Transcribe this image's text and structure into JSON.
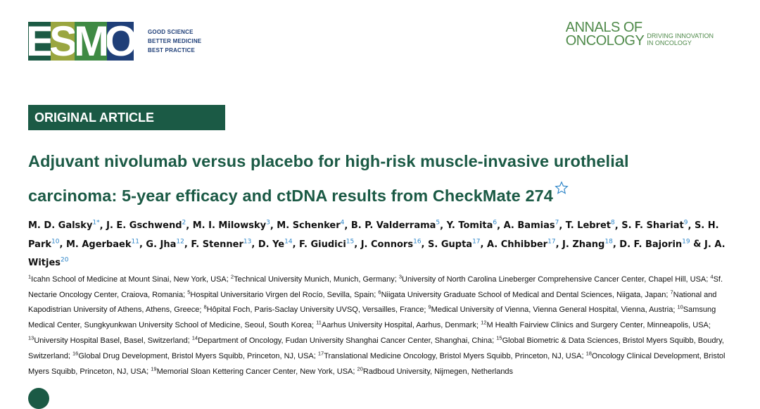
{
  "header": {
    "esmo_letters": [
      "E",
      "S",
      "M",
      "O"
    ],
    "esmo_tagline": [
      "GOOD SCIENCE",
      "BETTER MEDICINE",
      "BEST PRACTICE"
    ],
    "journal_title": [
      "ANNALS OF",
      "ONCOLOGY"
    ],
    "journal_tagline": [
      "DRIVING INNOVATION",
      "IN ONCOLOGY"
    ],
    "colors": {
      "esmo_e": "#1c5a44",
      "esmo_s": "#9aa640",
      "esmo_m": "#3f8a44",
      "esmo_o": "#1f3f78",
      "journal": "#4f8a4a"
    }
  },
  "article_type": "ORIGINAL ARTICLE",
  "title_line1": "Adjuvant nivolumab versus placebo for high-risk muscle-invasive urothelial",
  "title_line2": "carcinoma: 5-year efficacy and ctDNA results from CheckMate 274",
  "title_icon": "star-outline-icon",
  "authors": [
    {
      "name": "M. D. Galsky",
      "sup": "1*"
    },
    {
      "name": "J. E. Gschwend",
      "sup": "2"
    },
    {
      "name": "M. I. Milowsky",
      "sup": "3"
    },
    {
      "name": "M. Schenker",
      "sup": "4"
    },
    {
      "name": "B. P. Valderrama",
      "sup": "5"
    },
    {
      "name": "Y. Tomita",
      "sup": "6"
    },
    {
      "name": "A. Bamias",
      "sup": "7"
    },
    {
      "name": "T. Lebret",
      "sup": "8"
    },
    {
      "name": "S. F. Shariat",
      "sup": "9"
    },
    {
      "name": "S. H. Park",
      "sup": "10"
    },
    {
      "name": "M. Agerbaek",
      "sup": "11"
    },
    {
      "name": "G. Jha",
      "sup": "12"
    },
    {
      "name": "F. Stenner",
      "sup": "13"
    },
    {
      "name": "D. Ye",
      "sup": "14"
    },
    {
      "name": "F. Giudici",
      "sup": "15"
    },
    {
      "name": "J. Connors",
      "sup": "16"
    },
    {
      "name": "S. Gupta",
      "sup": "17"
    },
    {
      "name": "A. Chhibber",
      "sup": "17"
    },
    {
      "name": "J. Zhang",
      "sup": "18"
    },
    {
      "name": "D. F. Bajorin",
      "sup": "19"
    },
    {
      "name": "J. A. Witjes",
      "sup": "20"
    }
  ],
  "affiliations": [
    {
      "sup": "1",
      "text": "Icahn School of Medicine at Mount Sinai, New York, USA"
    },
    {
      "sup": "2",
      "text": "Technical University Munich, Munich, Germany"
    },
    {
      "sup": "3",
      "text": "University of North Carolina Lineberger Comprehensive Cancer Center, Chapel Hill, USA"
    },
    {
      "sup": "4",
      "text": "Sf. Nectarie Oncology Center, Craiova, Romania"
    },
    {
      "sup": "5",
      "text": "Hospital Universitario Virgen del Rocío, Sevilla, Spain"
    },
    {
      "sup": "6",
      "text": "Niigata University Graduate School of Medical and Dental Sciences, Niigata, Japan"
    },
    {
      "sup": "7",
      "text": "National and Kapodistrian University of Athens, Athens, Greece"
    },
    {
      "sup": "8",
      "text": "Hôpital Foch, Paris-Saclay University UVSQ, Versailles, France"
    },
    {
      "sup": "9",
      "text": "Medical University of Vienna, Vienna General Hospital, Vienna, Austria"
    },
    {
      "sup": "10",
      "text": "Samsung Medical Center, Sungkyunkwan University School of Medicine, Seoul, South Korea"
    },
    {
      "sup": "11",
      "text": "Aarhus University Hospital, Aarhus, Denmark"
    },
    {
      "sup": "12",
      "text": "M Health Fairview Clinics and Surgery Center, Minneapolis, USA"
    },
    {
      "sup": "13",
      "text": "University Hospital Basel, Basel, Switzerland"
    },
    {
      "sup": "14",
      "text": "Department of Oncology, Fudan University Shanghai Cancer Center, Shanghai, China"
    },
    {
      "sup": "15",
      "text": "Global Biometric & Data Sciences, Bristol Myers Squibb, Boudry, Switzerland"
    },
    {
      "sup": "16",
      "text": "Global Drug Development, Bristol Myers Squibb, Princeton, NJ, USA"
    },
    {
      "sup": "17",
      "text": "Translational Medicine Oncology, Bristol Myers Squibb, Princeton, NJ, USA"
    },
    {
      "sup": "18",
      "text": "Oncology Clinical Development, Bristol Myers Squibb, Princeton, NJ, USA"
    },
    {
      "sup": "19",
      "text": "Memorial Sloan Kettering Cancer Center, New York, USA"
    },
    {
      "sup": "20",
      "text": "Radboud University, Nijmegen, Netherlands"
    }
  ],
  "colors": {
    "accent": "#1b5a45",
    "link_blue": "#2f86c8"
  }
}
